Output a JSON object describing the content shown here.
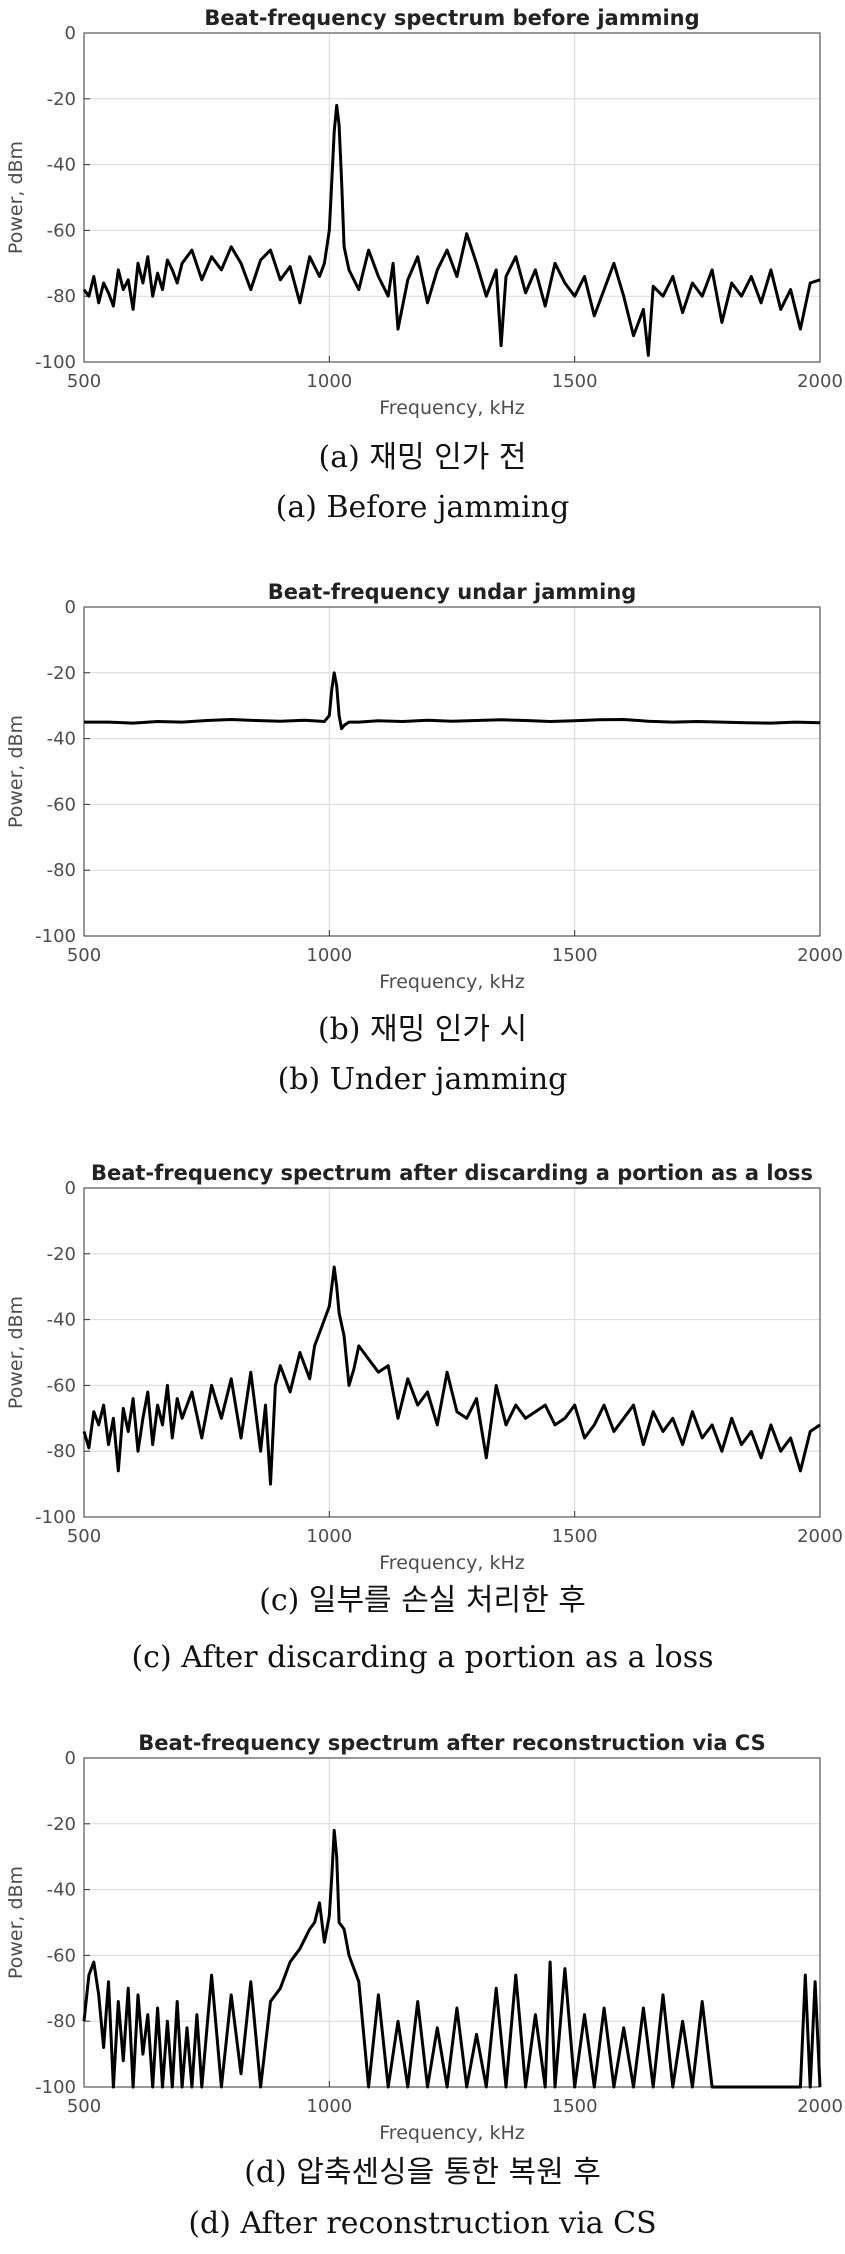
{
  "chart_data": [
    {
      "type": "line",
      "title": "Beat-frequency spectrum before jamming",
      "xlabel": "Frequency, kHz",
      "ylabel": "Power, dBm",
      "xlim": [
        500,
        2000
      ],
      "ylim": [
        -100,
        0
      ],
      "xticks": [
        500,
        1000,
        1500,
        2000
      ],
      "yticks": [
        0,
        -20,
        -40,
        -60,
        -80,
        -100
      ],
      "grid": true,
      "caption_ko": "(a)  재밍  인가  전",
      "caption_en": "(a)  Before  jamming",
      "series": [
        {
          "x": [
            500,
            510,
            520,
            530,
            540,
            550,
            560,
            570,
            580,
            590,
            600,
            610,
            620,
            630,
            640,
            650,
            660,
            670,
            680,
            690,
            700,
            720,
            740,
            760,
            780,
            800,
            820,
            840,
            860,
            880,
            900,
            920,
            940,
            960,
            980,
            990,
            1000,
            1005,
            1010,
            1015,
            1020,
            1025,
            1030,
            1040,
            1060,
            1080,
            1100,
            1120,
            1130,
            1140,
            1160,
            1180,
            1200,
            1220,
            1240,
            1260,
            1280,
            1300,
            1320,
            1340,
            1350,
            1360,
            1380,
            1400,
            1420,
            1440,
            1460,
            1480,
            1500,
            1520,
            1540,
            1560,
            1580,
            1600,
            1620,
            1640,
            1650,
            1660,
            1680,
            1700,
            1720,
            1740,
            1760,
            1780,
            1800,
            1820,
            1840,
            1860,
            1880,
            1900,
            1920,
            1940,
            1960,
            1980,
            2000
          ],
          "y": [
            -78,
            -80,
            -74,
            -82,
            -76,
            -79,
            -83,
            -72,
            -78,
            -75,
            -84,
            -70,
            -76,
            -68,
            -80,
            -73,
            -78,
            -69,
            -72,
            -76,
            -70,
            -66,
            -75,
            -68,
            -72,
            -65,
            -70,
            -78,
            -69,
            -66,
            -75,
            -71,
            -82,
            -68,
            -74,
            -70,
            -60,
            -45,
            -30,
            -22,
            -28,
            -45,
            -65,
            -72,
            -78,
            -66,
            -74,
            -80,
            -70,
            -90,
            -75,
            -68,
            -82,
            -72,
            -66,
            -74,
            -61,
            -70,
            -80,
            -72,
            -95,
            -74,
            -68,
            -79,
            -72,
            -83,
            -70,
            -76,
            -80,
            -74,
            -86,
            -78,
            -70,
            -80,
            -92,
            -84,
            -98,
            -77,
            -80,
            -74,
            -85,
            -76,
            -80,
            -72,
            -88,
            -76,
            -80,
            -74,
            -82,
            -72,
            -84,
            -78,
            -90,
            -76,
            -75
          ]
        }
      ]
    },
    {
      "type": "line",
      "title": "Beat-frequency undar jamming",
      "xlabel": "Frequency, kHz",
      "ylabel": "Power, dBm",
      "xlim": [
        500,
        2000
      ],
      "ylim": [
        -100,
        0
      ],
      "xticks": [
        500,
        1000,
        1500,
        2000
      ],
      "yticks": [
        0,
        -20,
        -40,
        -60,
        -80,
        -100
      ],
      "grid": true,
      "caption_ko": "(b)  재밍  인가  시",
      "caption_en": "(b)  Under  jamming",
      "series": [
        {
          "x": [
            500,
            550,
            600,
            650,
            700,
            750,
            800,
            850,
            900,
            950,
            990,
            1000,
            1005,
            1010,
            1015,
            1020,
            1025,
            1030,
            1040,
            1060,
            1100,
            1150,
            1200,
            1250,
            1300,
            1350,
            1400,
            1450,
            1500,
            1550,
            1600,
            1650,
            1700,
            1750,
            1800,
            1850,
            1900,
            1950,
            2000
          ],
          "y": [
            -35,
            -35,
            -35.3,
            -34.8,
            -35,
            -34.5,
            -34.2,
            -34.5,
            -34.7,
            -34.4,
            -34.8,
            -33,
            -25,
            -20,
            -24,
            -33,
            -37,
            -36,
            -35,
            -35,
            -34.6,
            -34.8,
            -34.4,
            -34.7,
            -34.5,
            -34.3,
            -34.5,
            -34.8,
            -34.6,
            -34.3,
            -34.2,
            -34.7,
            -35,
            -34.8,
            -35,
            -35.2,
            -35.3,
            -35,
            -35.2
          ]
        }
      ]
    },
    {
      "type": "line",
      "title": "Beat-frequency spectrum after discarding a portion as a loss",
      "xlabel": "Frequency, kHz",
      "ylabel": "Power, dBm",
      "xlim": [
        500,
        2000
      ],
      "ylim": [
        -100,
        0
      ],
      "xticks": [
        500,
        1000,
        1500,
        2000
      ],
      "yticks": [
        0,
        -20,
        -40,
        -60,
        -80,
        -100
      ],
      "grid": true,
      "caption_ko": "(c)  일부를  손실  처리한  후",
      "caption_en": "(c)  After  discarding  a  portion  as  a  loss",
      "series": [
        {
          "x": [
            500,
            510,
            520,
            530,
            540,
            550,
            560,
            570,
            580,
            590,
            600,
            610,
            620,
            630,
            640,
            650,
            660,
            670,
            680,
            690,
            700,
            720,
            740,
            760,
            780,
            800,
            820,
            840,
            860,
            870,
            880,
            890,
            900,
            920,
            940,
            960,
            970,
            980,
            990,
            1000,
            1005,
            1010,
            1015,
            1020,
            1030,
            1040,
            1050,
            1060,
            1080,
            1100,
            1120,
            1140,
            1160,
            1180,
            1200,
            1220,
            1240,
            1260,
            1280,
            1300,
            1320,
            1340,
            1360,
            1380,
            1400,
            1420,
            1440,
            1460,
            1480,
            1500,
            1520,
            1540,
            1560,
            1580,
            1600,
            1620,
            1640,
            1660,
            1680,
            1700,
            1720,
            1740,
            1760,
            1780,
            1800,
            1820,
            1840,
            1860,
            1880,
            1900,
            1920,
            1940,
            1960,
            1980,
            2000
          ],
          "y": [
            -74,
            -79,
            -68,
            -72,
            -66,
            -78,
            -70,
            -86,
            -67,
            -74,
            -64,
            -80,
            -70,
            -62,
            -78,
            -66,
            -72,
            -60,
            -76,
            -64,
            -70,
            -62,
            -76,
            -60,
            -70,
            -58,
            -76,
            -56,
            -80,
            -66,
            -90,
            -60,
            -54,
            -62,
            -50,
            -58,
            -48,
            -44,
            -40,
            -36,
            -30,
            -24,
            -30,
            -38,
            -45,
            -60,
            -55,
            -48,
            -52,
            -56,
            -54,
            -70,
            -58,
            -66,
            -62,
            -72,
            -56,
            -68,
            -70,
            -64,
            -82,
            -60,
            -72,
            -66,
            -70,
            -68,
            -66,
            -72,
            -70,
            -66,
            -76,
            -72,
            -66,
            -74,
            -70,
            -66,
            -78,
            -68,
            -74,
            -70,
            -78,
            -68,
            -76,
            -72,
            -80,
            -70,
            -78,
            -74,
            -82,
            -72,
            -80,
            -76,
            -86,
            -74,
            -72
          ]
        }
      ]
    },
    {
      "type": "line",
      "title": "Beat-frequency spectrum after reconstruction via CS",
      "xlabel": "Frequency, kHz",
      "ylabel": "Power, dBm",
      "xlim": [
        500,
        2000
      ],
      "ylim": [
        -100,
        0
      ],
      "xticks": [
        500,
        1000,
        1500,
        2000
      ],
      "yticks": [
        0,
        -20,
        -40,
        -60,
        -80,
        -100
      ],
      "grid": true,
      "caption_ko": "(d)  압축센싱을  통한  복원  후",
      "caption_en": "(d)  After  reconstruction  via  CS",
      "series": [
        {
          "x": [
            500,
            510,
            520,
            530,
            540,
            550,
            560,
            570,
            580,
            590,
            600,
            610,
            620,
            630,
            640,
            650,
            660,
            670,
            680,
            690,
            700,
            710,
            720,
            730,
            740,
            760,
            780,
            800,
            820,
            840,
            860,
            880,
            900,
            920,
            940,
            960,
            970,
            980,
            990,
            1000,
            1005,
            1010,
            1015,
            1020,
            1030,
            1040,
            1060,
            1080,
            1100,
            1120,
            1140,
            1160,
            1180,
            1200,
            1220,
            1240,
            1260,
            1280,
            1300,
            1320,
            1340,
            1360,
            1380,
            1400,
            1420,
            1440,
            1450,
            1460,
            1480,
            1500,
            1520,
            1540,
            1560,
            1580,
            1600,
            1620,
            1640,
            1660,
            1680,
            1700,
            1720,
            1740,
            1760,
            1780,
            1800,
            1820,
            1840,
            1860,
            1880,
            1900,
            1920,
            1940,
            1960,
            1970,
            1980,
            1990,
            2000
          ],
          "y": [
            -80,
            -66,
            -62,
            -72,
            -88,
            -68,
            -100,
            -74,
            -92,
            -70,
            -100,
            -72,
            -90,
            -78,
            -100,
            -76,
            -100,
            -80,
            -100,
            -74,
            -100,
            -82,
            -100,
            -78,
            -100,
            -66,
            -100,
            -72,
            -96,
            -68,
            -100,
            -74,
            -70,
            -62,
            -58,
            -52,
            -50,
            -44,
            -56,
            -48,
            -36,
            -22,
            -30,
            -50,
            -52,
            -60,
            -68,
            -100,
            -72,
            -100,
            -80,
            -100,
            -74,
            -100,
            -82,
            -100,
            -76,
            -100,
            -84,
            -100,
            -70,
            -100,
            -66,
            -100,
            -78,
            -100,
            -62,
            -100,
            -64,
            -100,
            -78,
            -100,
            -76,
            -100,
            -82,
            -100,
            -76,
            -100,
            -72,
            -100,
            -80,
            -100,
            -74,
            -100,
            -100,
            -100,
            -100,
            -100,
            -100,
            -100,
            -100,
            -100,
            -100,
            -66,
            -100,
            -68,
            -100
          ]
        }
      ]
    }
  ]
}
